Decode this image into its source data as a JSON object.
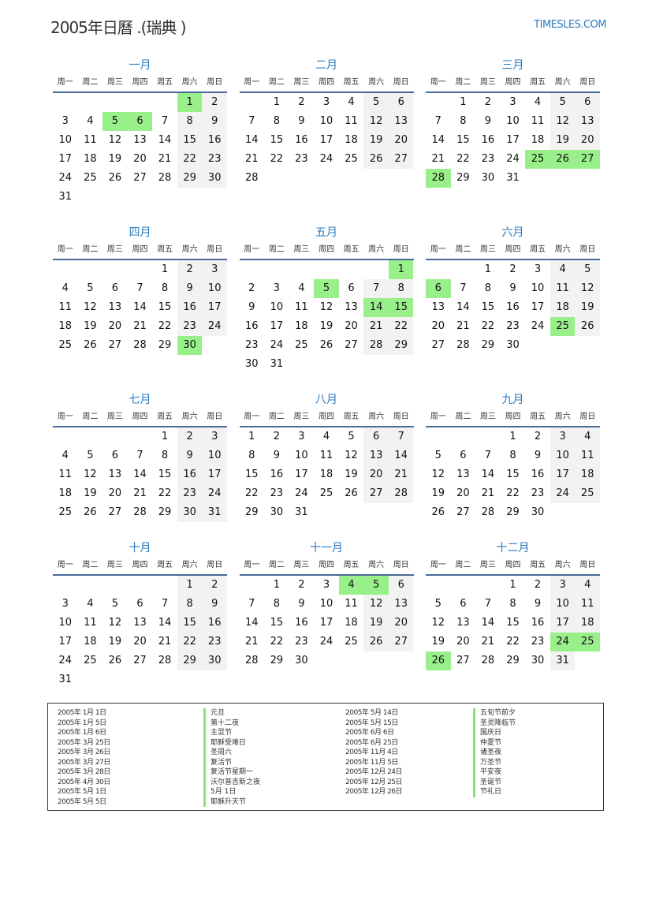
{
  "header": {
    "title": "2005年日曆 .(瑞典 )",
    "logo": "TIMESLES.COM"
  },
  "colors": {
    "accent": "#2a7ac0",
    "holiday": "#99f08a",
    "weekend": "#f2f2f2"
  },
  "weekdays": [
    "周一",
    "周二",
    "周三",
    "周四",
    "周五",
    "周六",
    "周日"
  ],
  "months": [
    {
      "name": "一月",
      "first_weekday": 5,
      "days": 31,
      "holidays": [
        1,
        5,
        6
      ]
    },
    {
      "name": "二月",
      "first_weekday": 1,
      "days": 28,
      "holidays": []
    },
    {
      "name": "三月",
      "first_weekday": 1,
      "days": 31,
      "holidays": [
        25,
        26,
        27,
        28
      ]
    },
    {
      "name": "四月",
      "first_weekday": 4,
      "days": 30,
      "holidays": [
        30
      ]
    },
    {
      "name": "五月",
      "first_weekday": 6,
      "days": 31,
      "holidays": [
        1,
        5,
        14,
        15
      ]
    },
    {
      "name": "六月",
      "first_weekday": 2,
      "days": 30,
      "holidays": [
        6,
        25
      ]
    },
    {
      "name": "七月",
      "first_weekday": 4,
      "days": 31,
      "holidays": []
    },
    {
      "name": "八月",
      "first_weekday": 0,
      "days": 31,
      "holidays": []
    },
    {
      "name": "九月",
      "first_weekday": 3,
      "days": 30,
      "holidays": []
    },
    {
      "name": "十月",
      "first_weekday": 5,
      "days": 31,
      "holidays": []
    },
    {
      "name": "十一月",
      "first_weekday": 1,
      "days": 30,
      "holidays": [
        4,
        5
      ]
    },
    {
      "name": "十二月",
      "first_weekday": 3,
      "days": 31,
      "holidays": [
        24,
        25,
        26
      ]
    }
  ],
  "holiday_list": [
    [
      {
        "date": "2005年 1月 1日",
        "name": "元旦"
      },
      {
        "date": "2005年 1月 5日",
        "name": "第十二夜"
      },
      {
        "date": "2005年 1月 6日",
        "name": "主显节"
      },
      {
        "date": "2005年 3月 25日",
        "name": "耶稣受难日"
      },
      {
        "date": "2005年 3月 26日",
        "name": "圣周六"
      },
      {
        "date": "2005年 3月 27日",
        "name": "复活节"
      },
      {
        "date": "2005年 3月 28日",
        "name": "复活节星期一"
      },
      {
        "date": "2005年 4月 30日",
        "name": "沃尔普吉斯之夜"
      },
      {
        "date": "2005年 5月 1日",
        "name": "5月 1日"
      },
      {
        "date": "2005年 5月 5日",
        "name": "耶稣升天节"
      }
    ],
    [
      {
        "date": "2005年 5月 14日",
        "name": "五旬节前夕"
      },
      {
        "date": "2005年 5月 15日",
        "name": "圣灵降临节"
      },
      {
        "date": "2005年 6月 6日",
        "name": "国庆日"
      },
      {
        "date": "2005年 6月 25日",
        "name": "仲夏节"
      },
      {
        "date": "2005年 11月 4日",
        "name": "诸圣夜"
      },
      {
        "date": "2005年 11月 5日",
        "name": "万圣节"
      },
      {
        "date": "2005年 12月 24日",
        "name": "平安夜"
      },
      {
        "date": "2005年 12月 25日",
        "name": "圣诞节"
      },
      {
        "date": "2005年 12月 26日",
        "name": "节礼日"
      }
    ]
  ]
}
